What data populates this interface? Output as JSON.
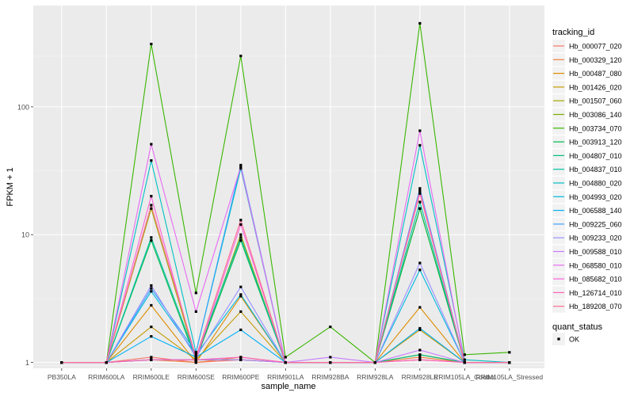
{
  "chart_data": {
    "type": "line",
    "scale": "log10",
    "ylabel": "FPKM + 1",
    "xlabel": "sample_name",
    "ylim": [
      0.9,
      620
    ],
    "yticks": [
      1,
      10,
      100
    ],
    "categories": [
      "PB350LA",
      "RRIM600LA",
      "RRIM600LE",
      "RRIM600SE",
      "RRIM600PE",
      "RRIM901LA",
      "RRIM928BA",
      "RRIM928LA",
      "RRIM928LE",
      "RRIM105LA_Control",
      "RRIM105LA_Stressed"
    ],
    "grid": true,
    "legend": {
      "position": "right",
      "tracking_title": "tracking_id",
      "quant_title": "quant_status",
      "quant_items": [
        "OK"
      ]
    },
    "series": [
      {
        "name": "Hb_000077_020",
        "color": "#F8766D",
        "values": [
          1,
          1,
          1.1,
          1,
          1.05,
          1,
          1,
          1,
          1.05,
          1,
          1
        ]
      },
      {
        "name": "Hb_000329_120",
        "color": "#EE8043",
        "values": [
          1,
          1,
          1.05,
          1,
          1.1,
          1,
          1,
          1,
          1.1,
          1,
          1
        ]
      },
      {
        "name": "Hb_000487_080",
        "color": "#DE8C00",
        "values": [
          1,
          1,
          2.8,
          1,
          3.3,
          1,
          1,
          1,
          2.7,
          1,
          1
        ]
      },
      {
        "name": "Hb_001426_020",
        "color": "#C59900",
        "values": [
          1,
          1,
          1.9,
          1.05,
          2.5,
          1,
          1,
          1,
          1.8,
          1,
          1
        ]
      },
      {
        "name": "Hb_001507_060",
        "color": "#A3A500",
        "values": [
          1,
          1,
          16,
          1.05,
          10,
          1,
          1,
          1,
          16,
          1,
          1
        ]
      },
      {
        "name": "Hb_003086_140",
        "color": "#7CAE00",
        "values": [
          1,
          1,
          1.05,
          1.05,
          1.05,
          1,
          1,
          1,
          1.15,
          1,
          1
        ]
      },
      {
        "name": "Hb_003734_070",
        "color": "#39B600",
        "values": [
          1,
          1,
          310,
          3.5,
          250,
          1.1,
          1.9,
          1,
          450,
          1.15,
          1.2
        ]
      },
      {
        "name": "Hb_003913_120",
        "color": "#00BB4E",
        "values": [
          1,
          1,
          9,
          1.05,
          9,
          1,
          1,
          1,
          16,
          1,
          1
        ]
      },
      {
        "name": "Hb_004807_010",
        "color": "#00BF7D",
        "values": [
          1,
          1,
          1.05,
          1.05,
          1.05,
          1,
          1,
          1,
          1.15,
          1,
          1
        ]
      },
      {
        "name": "Hb_004837_010",
        "color": "#00C1A3",
        "values": [
          1,
          1,
          9.5,
          1.1,
          9.5,
          1,
          1,
          1,
          18,
          1,
          1
        ]
      },
      {
        "name": "Hb_004880_020",
        "color": "#00BFC4",
        "values": [
          1,
          1,
          38,
          1.2,
          33,
          1,
          1,
          1,
          50,
          1.05,
          1
        ]
      },
      {
        "name": "Hb_004993_020",
        "color": "#00BAE0",
        "values": [
          1,
          1,
          3.6,
          1.15,
          3.4,
          1,
          1,
          1,
          5.3,
          1,
          1
        ]
      },
      {
        "name": "Hb_006588_140",
        "color": "#00B0F6",
        "values": [
          1,
          1,
          1.6,
          1.1,
          1.8,
          1,
          1,
          1,
          1.85,
          1,
          1
        ]
      },
      {
        "name": "Hb_009225_060",
        "color": "#35A2FF",
        "values": [
          1,
          1,
          3.8,
          1.2,
          35,
          1,
          1,
          1,
          23,
          1,
          1
        ]
      },
      {
        "name": "Hb_009233_020",
        "color": "#9590FF",
        "values": [
          1,
          1,
          4,
          1.1,
          3.9,
          1,
          1,
          1,
          6,
          1,
          1
        ]
      },
      {
        "name": "Hb_009588_010",
        "color": "#C77CFF",
        "values": [
          1,
          1,
          1.05,
          1.05,
          1.05,
          1,
          1.1,
          1,
          1.25,
          1,
          1
        ]
      },
      {
        "name": "Hb_068580_010",
        "color": "#E76BF3",
        "values": [
          1,
          1,
          51,
          2.5,
          34,
          1,
          1,
          1,
          65,
          1,
          1
        ]
      },
      {
        "name": "Hb_085682_010",
        "color": "#FA62DB",
        "values": [
          1,
          1,
          20,
          1.05,
          12,
          1,
          1,
          1,
          22,
          1,
          1
        ]
      },
      {
        "name": "Hb_126714_010",
        "color": "#FF62BC",
        "values": [
          1,
          1,
          1.05,
          1.05,
          1.1,
          1,
          1,
          1,
          1.05,
          1,
          1
        ]
      },
      {
        "name": "Hb_189208_070",
        "color": "#FF6C91",
        "values": [
          1,
          1,
          17,
          1.1,
          13,
          1,
          1,
          1,
          21,
          1,
          1
        ]
      }
    ]
  }
}
